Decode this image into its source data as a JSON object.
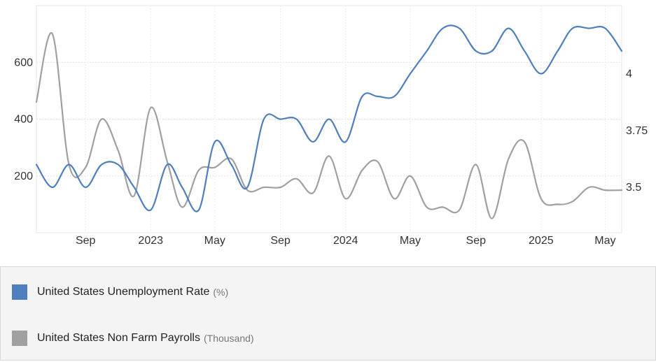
{
  "chart_data": {
    "type": "line",
    "x_ticks": [
      "Sep",
      "2023",
      "May",
      "Sep",
      "2024",
      "May",
      "Sep",
      "2025",
      "May"
    ],
    "y_left": {
      "ticks": [
        "200",
        "400",
        "600"
      ],
      "ylim": [
        0,
        800
      ]
    },
    "y_right": {
      "ticks": [
        "3.5",
        "3.75",
        "4"
      ],
      "ylim": [
        3.3,
        4.3
      ]
    },
    "grid": true,
    "legend_placement": "bottom",
    "x": [
      "2022-06",
      "2022-07",
      "2022-08",
      "2022-09",
      "2022-10",
      "2022-11",
      "2022-12",
      "2023-01",
      "2023-02",
      "2023-03",
      "2023-04",
      "2023-05",
      "2023-06",
      "2023-07",
      "2023-08",
      "2023-09",
      "2023-10",
      "2023-11",
      "2023-12",
      "2024-01",
      "2024-02",
      "2024-03",
      "2024-04",
      "2024-05",
      "2024-06",
      "2024-07",
      "2024-08",
      "2024-09",
      "2024-10",
      "2024-11",
      "2024-12",
      "2025-01",
      "2025-02",
      "2025-03",
      "2025-04",
      "2025-05",
      "2025-06"
    ],
    "series": [
      {
        "name": "United States Unemployment Rate",
        "unit": "(%)",
        "axis": "right",
        "color": "#4f7fbc",
        "values": [
          3.6,
          3.5,
          3.6,
          3.5,
          3.6,
          3.6,
          3.5,
          3.4,
          3.6,
          3.5,
          3.4,
          3.7,
          3.6,
          3.5,
          3.8,
          3.8,
          3.8,
          3.7,
          3.8,
          3.7,
          3.9,
          3.9,
          3.9,
          4.0,
          4.1,
          4.2,
          4.2,
          4.1,
          4.1,
          4.2,
          4.1,
          4.0,
          4.1,
          4.2,
          4.2,
          4.2,
          4.1
        ]
      },
      {
        "name": "United States Non Farm Payrolls",
        "unit": "(Thousand)",
        "axis": "left",
        "color": "#a0a0a0",
        "values": [
          460,
          700,
          240,
          230,
          400,
          290,
          130,
          440,
          250,
          90,
          220,
          230,
          260,
          150,
          160,
          160,
          190,
          140,
          270,
          120,
          220,
          250,
          120,
          200,
          90,
          90,
          80,
          240,
          50,
          260,
          320,
          120,
          100,
          110,
          160,
          150,
          150
        ]
      }
    ]
  }
}
